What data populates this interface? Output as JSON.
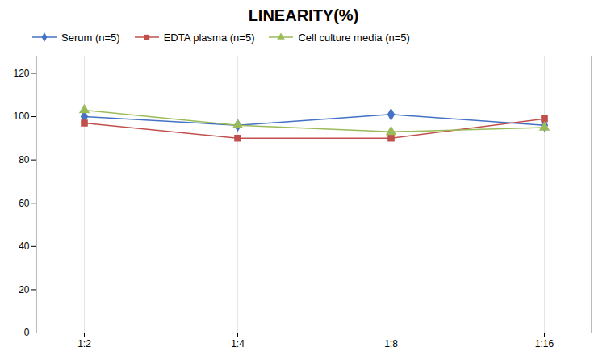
{
  "chart_data": {
    "type": "line",
    "title": "LINEARITY(%)",
    "categories": [
      "1:2",
      "1:4",
      "1:8",
      "1:16"
    ],
    "series": [
      {
        "name": "Serum (n=5)",
        "color": "#4472C4",
        "marker": "diamond",
        "values": [
          100,
          96,
          101,
          96
        ]
      },
      {
        "name": "EDTA plasma (n=5)",
        "color": "#C0504D",
        "marker": "square",
        "values": [
          97,
          90,
          90,
          99
        ]
      },
      {
        "name": "Cell culture media (n=5)",
        "color": "#9BBB59",
        "marker": "triangle",
        "values": [
          103,
          96,
          93,
          95
        ]
      }
    ],
    "ylim": [
      0,
      128
    ],
    "yticks": [
      0,
      20,
      40,
      60,
      80,
      100,
      120
    ],
    "grid": "x",
    "legend": "top"
  }
}
